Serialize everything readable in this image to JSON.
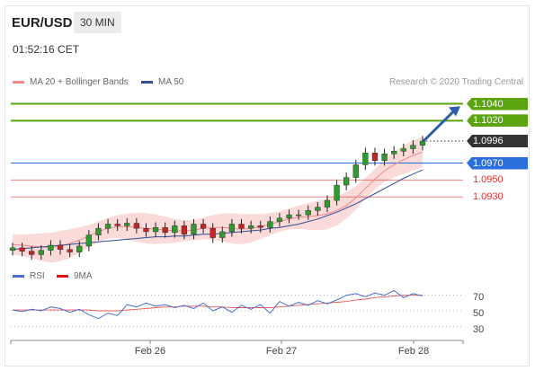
{
  "header": {
    "pair": "EUR/USD",
    "timeframe": "30 MIN",
    "time": "01:52:16 CET"
  },
  "legend": {
    "ma20": "MA 20 + Bollinger Bands",
    "ma50": "MA 50",
    "credit": "Research © 2020 Trading Central"
  },
  "colors": {
    "resistance": "#5aa50f",
    "support_strong": "#2a6fdc",
    "support": "#e03030",
    "price_box": "#333333",
    "ma20": "#f08a8a",
    "bollinger_fill": "#fbdada",
    "ma50": "#2f4f9a",
    "candle_up": "#2f9a2f",
    "candle_down": "#c02828",
    "rsi": "#4a6fd0",
    "rsi_ma": "#e01010",
    "arrow": "#2b5fa8"
  },
  "levels": [
    {
      "label": "1.1040",
      "value": 1.104,
      "type": "resistance"
    },
    {
      "label": "1.1020",
      "value": 1.102,
      "type": "resistance"
    },
    {
      "label": "1.0996",
      "value": 1.0996,
      "type": "price"
    },
    {
      "label": "1.0970",
      "value": 1.097,
      "type": "support_strong"
    },
    {
      "label": "1.0950",
      "value": 1.095,
      "type": "support"
    },
    {
      "label": "1.0930",
      "value": 1.093,
      "type": "support"
    }
  ],
  "chart_data": [
    {
      "type": "candlestick",
      "x_tick_labels": [
        "Feb 26",
        "Feb 27",
        "Feb 28"
      ],
      "ylim": [
        1.0855,
        1.1048
      ],
      "series": [
        {
          "name": "MA 20 + Bollinger Bands",
          "values": [
            1.0874,
            1.0873,
            1.0872,
            1.0871,
            1.087,
            1.0872,
            1.0875,
            1.0879,
            1.0884,
            1.0889,
            1.0893,
            1.0895,
            1.0895,
            1.0894,
            1.0893,
            1.0892,
            1.0891,
            1.089,
            1.089,
            1.0891,
            1.0893,
            1.0894,
            1.0894,
            1.0893,
            1.0892,
            1.0893,
            1.0895,
            1.0898,
            1.0901,
            1.0904,
            1.0906,
            1.0907,
            1.0908,
            1.091,
            1.0914,
            1.092,
            1.0929,
            1.094,
            1.0951,
            1.0961,
            1.0968,
            1.0974,
            1.0979,
            1.0983
          ]
        },
        {
          "name": "MA 50",
          "values": [
            1.0868,
            1.0869,
            1.087,
            1.0871,
            1.0872,
            1.0873,
            1.0874,
            1.0875,
            1.0876,
            1.0877,
            1.0878,
            1.0879,
            1.088,
            1.0881,
            1.0882,
            1.0883,
            1.0883,
            1.0884,
            1.0884,
            1.0885,
            1.0886,
            1.0886,
            1.0887,
            1.0888,
            1.0889,
            1.089,
            1.0891,
            1.0893,
            1.0894,
            1.0896,
            1.0898,
            1.0901,
            1.0904,
            1.0908,
            1.0912,
            1.0917,
            1.0922,
            1.0928,
            1.0934,
            1.094,
            1.0946,
            1.0952,
            1.0957,
            1.0962
          ]
        },
        {
          "name": "Price",
          "values": [
            1.087,
            1.0866,
            1.0862,
            1.0867,
            1.0873,
            1.0868,
            1.0865,
            1.0872,
            1.0885,
            1.0893,
            1.0898,
            1.0896,
            1.0899,
            1.0893,
            1.0889,
            1.0894,
            1.0888,
            1.0896,
            1.0886,
            1.0898,
            1.0893,
            1.0882,
            1.0889,
            1.0898,
            1.0893,
            1.0896,
            1.0894,
            1.0901,
            1.0905,
            1.0909,
            1.0909,
            1.0914,
            1.0918,
            1.0926,
            1.0944,
            1.0953,
            1.0968,
            1.0982,
            1.0973,
            1.0981,
            1.0984,
            1.0987,
            1.0991,
            1.0996
          ]
        }
      ]
    },
    {
      "type": "line",
      "yticks": [
        70,
        50,
        30
      ],
      "ylim": [
        20,
        80
      ],
      "series": [
        {
          "name": "RSI",
          "values": [
            51,
            49,
            52,
            50,
            55,
            53,
            48,
            52,
            45,
            40,
            47,
            44,
            58,
            55,
            60,
            56,
            58,
            54,
            57,
            53,
            60,
            50,
            55,
            48,
            57,
            52,
            58,
            47,
            62,
            56,
            61,
            57,
            63,
            59,
            64,
            70,
            72,
            68,
            73,
            70,
            76,
            67,
            72,
            69
          ]
        },
        {
          "name": "9MA",
          "values": [
            51,
            51,
            51,
            51,
            51,
            51,
            51,
            51,
            51,
            50,
            50,
            50,
            51,
            52,
            53,
            54,
            55,
            55,
            56,
            56,
            56,
            55,
            55,
            54,
            54,
            54,
            54,
            54,
            55,
            56,
            57,
            58,
            59,
            60,
            61,
            62,
            64,
            65,
            67,
            68,
            69,
            70,
            70,
            70
          ]
        }
      ]
    }
  ]
}
